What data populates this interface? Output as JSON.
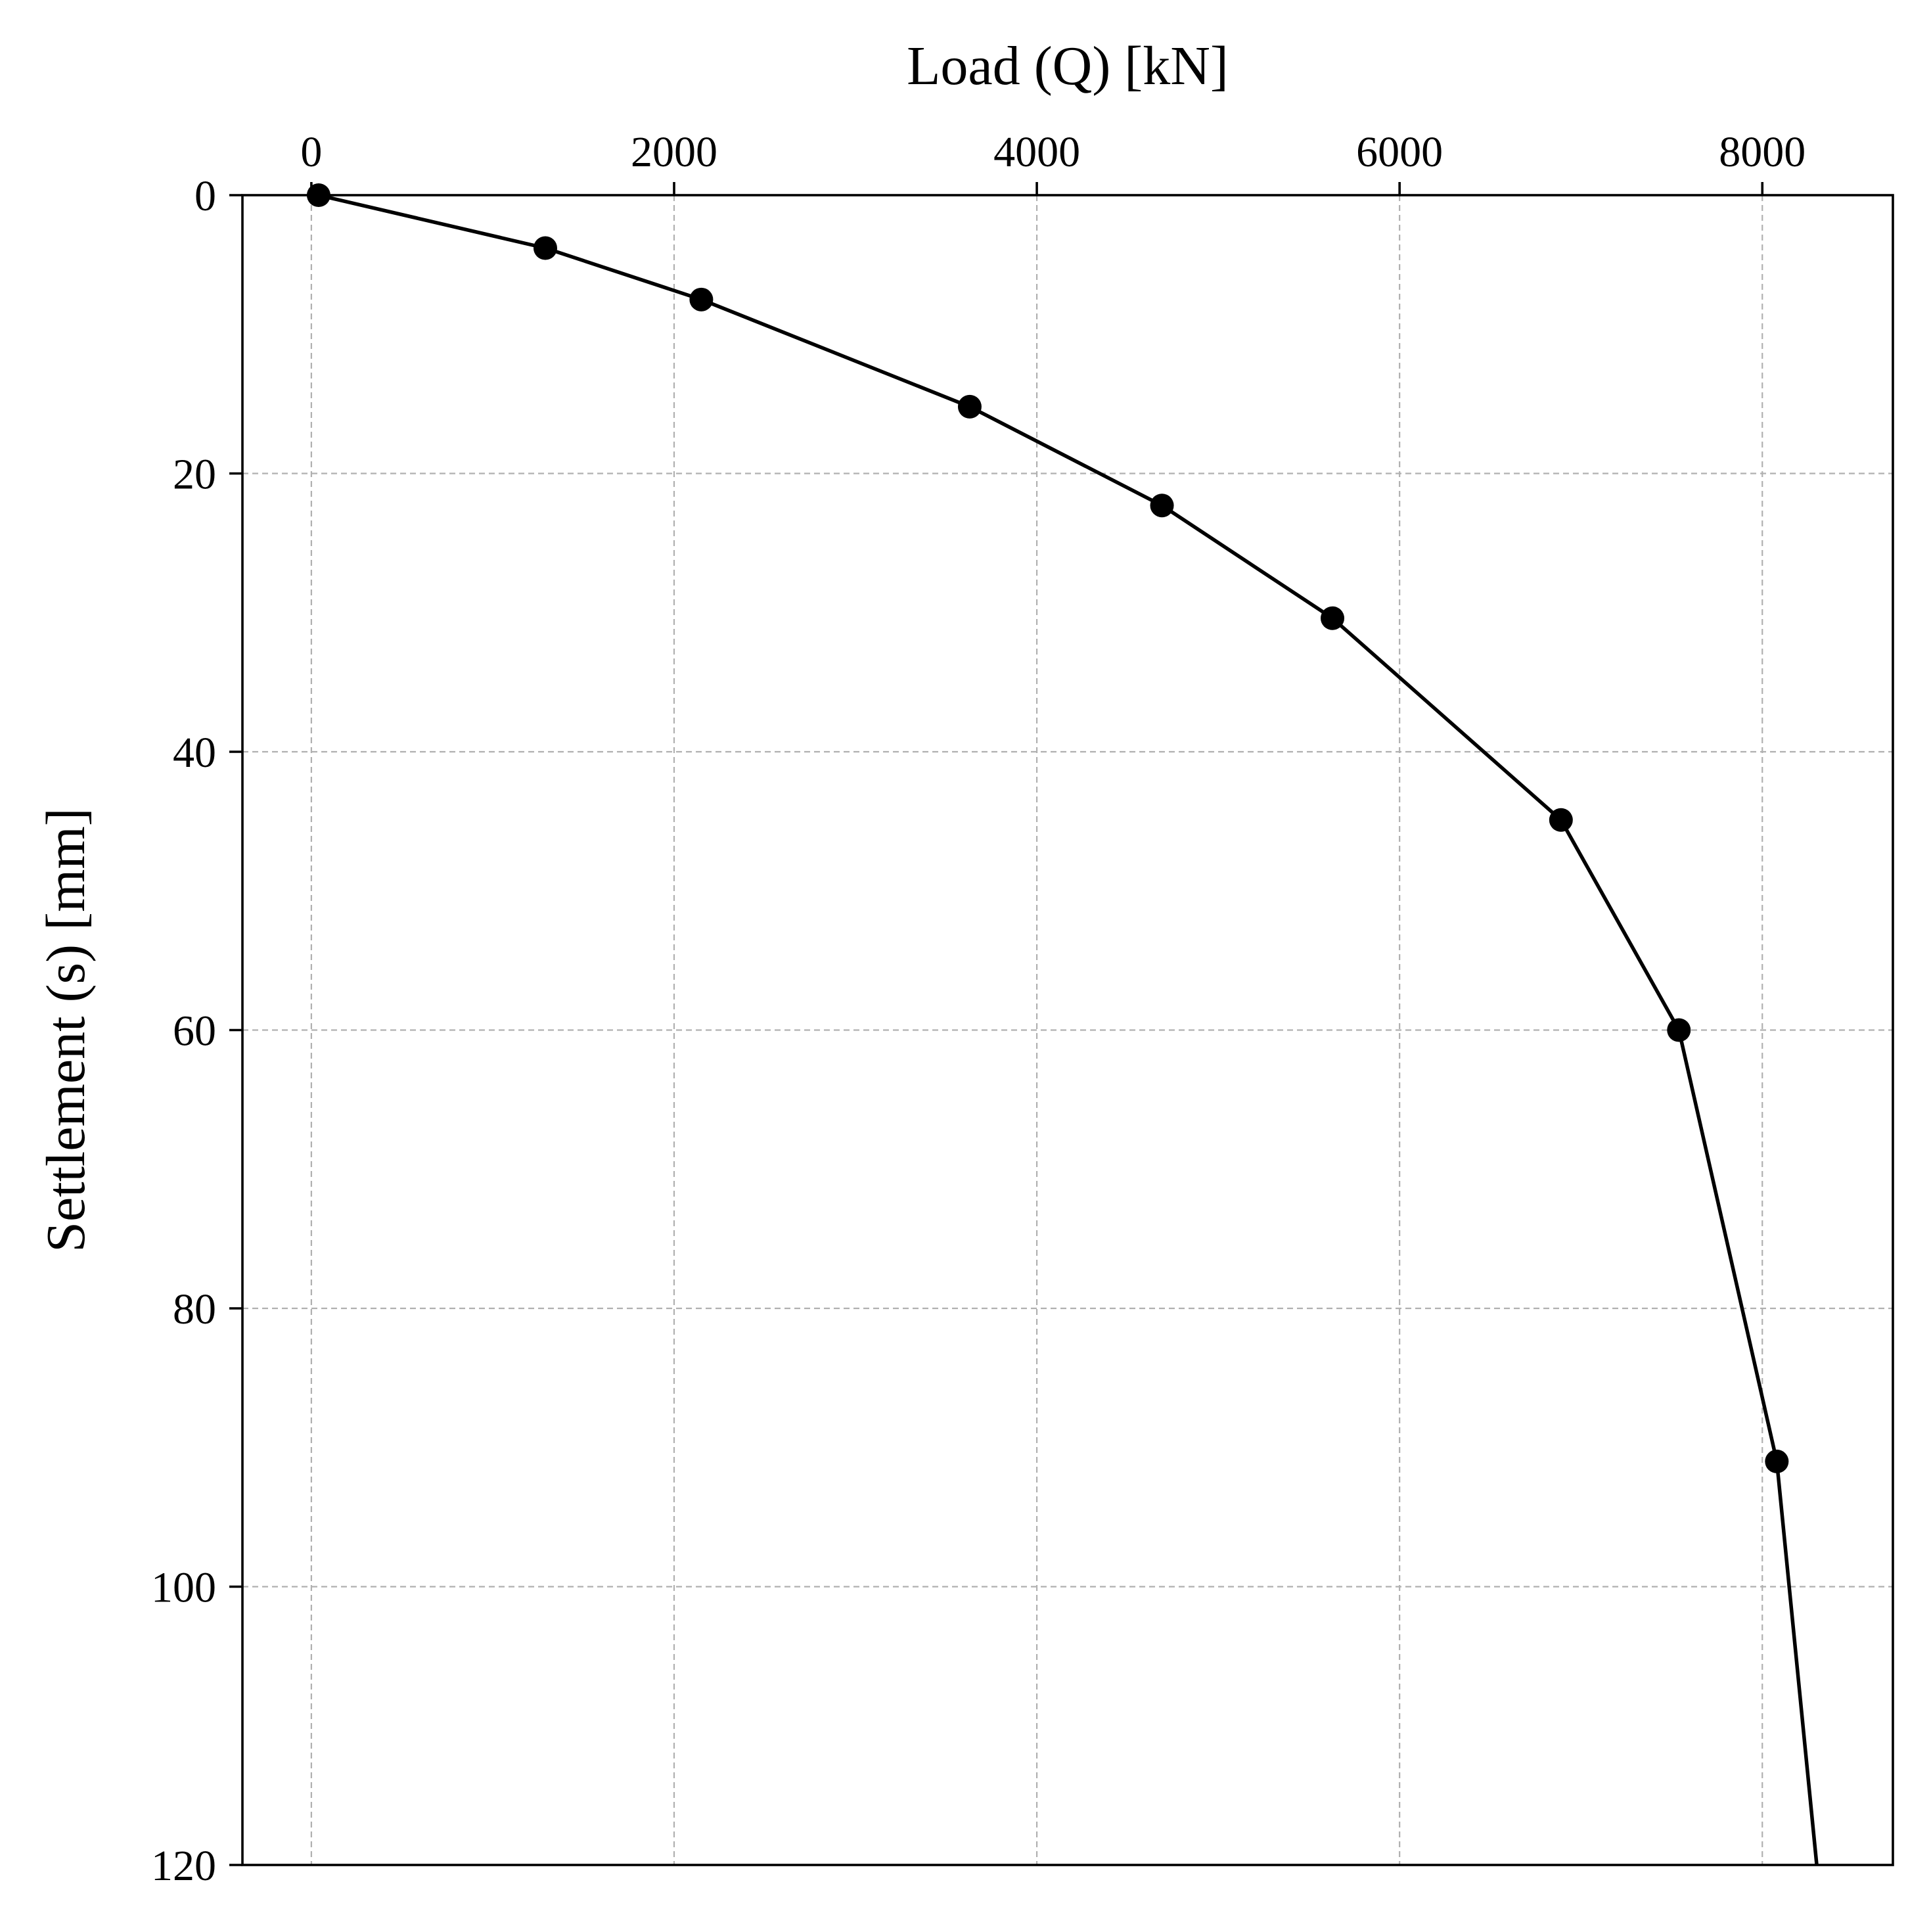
{
  "chart_data": {
    "type": "line",
    "title": "",
    "xlabel": "Load (Q) [kN]",
    "ylabel": "Settlement (s) [mm]",
    "x_axis_position": "top",
    "y_axis_inverted": true,
    "xlim": [
      -380,
      8720
    ],
    "ylim": [
      0,
      120
    ],
    "xticks": [
      0,
      2000,
      4000,
      6000,
      8000
    ],
    "yticks": [
      0,
      20,
      40,
      60,
      80,
      100,
      120
    ],
    "grid": true,
    "legend": "none",
    "colors": {
      "series": "#000000",
      "grid": "#b0b0b0",
      "frame": "#000000"
    },
    "series": [
      {
        "x": [
          40,
          1290,
          2150,
          3630,
          4690,
          5630,
          6890,
          7540,
          8080,
          8300
        ],
        "y": [
          0,
          3.8,
          7.5,
          15.2,
          22.3,
          30.4,
          44.9,
          60.0,
          91.0,
          120.0
        ],
        "markers": [
          true,
          true,
          true,
          true,
          true,
          true,
          true,
          true,
          true,
          false
        ]
      }
    ]
  }
}
